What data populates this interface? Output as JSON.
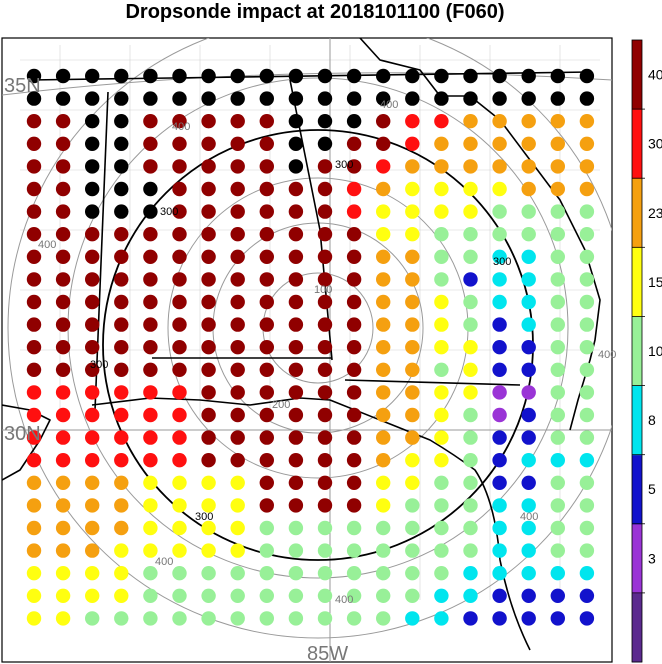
{
  "title": "Dropsonde impact at 2018101100 (F060)",
  "axis_labels": {
    "lat_north": "35N",
    "lat_south": "30N",
    "lon": "85W"
  },
  "contours": {
    "inner_levels": [
      "100",
      "200"
    ],
    "black_level": "300",
    "outer_level": "400"
  },
  "colorbar": {
    "ticks": [
      "3",
      "5",
      "8",
      "10",
      "15",
      "23",
      "30",
      "40"
    ],
    "colors": [
      "#5b2a8e",
      "#9a34d6",
      "#1212cc",
      "#00e5ee",
      "#98f098",
      "#ffff10",
      "#f5a010",
      "#ff1010",
      "#900000"
    ]
  },
  "grid": {
    "rows": [
      "99999999999999999999",
      "99999999999999999999",
      "88998888899987766666",
      "88998888899887666666",
      "88998888898876666666",
      "88999888888765555666",
      "88999888888755554444",
      "88888888888855444444",
      "88888888888866443344",
      "88888888888866423344",
      "88888888888866543344",
      "88888888888866542344",
      "88888888888866552244",
      "88888888888866452244",
      "77777788888866551144",
      "77777788888866541244",
      "77777788888866542244",
      "77777788888865542333",
      "66665555888855442244",
      "66665555888854443344",
      "66665555444444443344",
      "66655555444444443344",
      "55554444444444433333",
      "55554444444444332222",
      "55444444444443322222"
    ],
    "row_palette_note": ""
  }
}
